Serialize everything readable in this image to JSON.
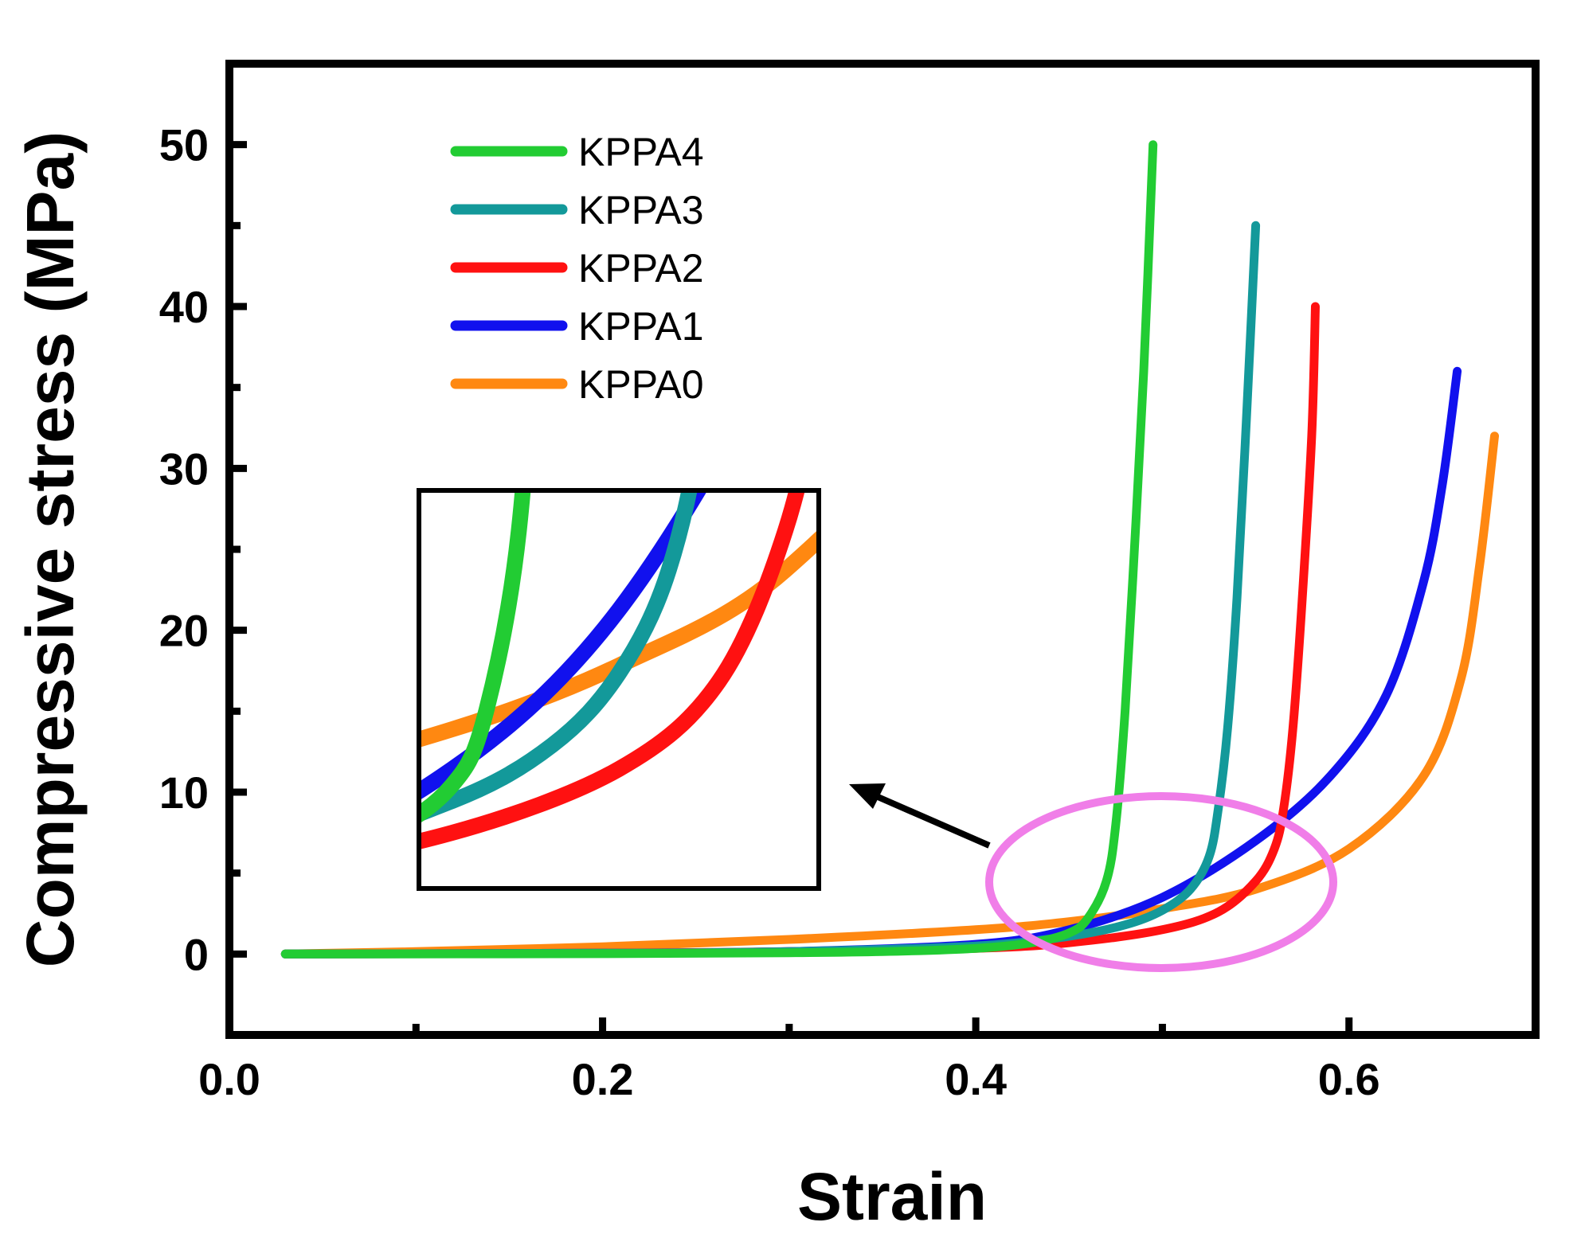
{
  "chart_data": {
    "type": "line",
    "title": "",
    "xlabel": "Strain",
    "ylabel": "Compressive stress (MPa)",
    "xlim": [
      0.0,
      0.7
    ],
    "ylim": [
      -5,
      55
    ],
    "x_ticks": [
      "0.0",
      "0.2",
      "0.4",
      "0.6"
    ],
    "y_ticks": [
      "0",
      "10",
      "20",
      "30",
      "40",
      "50"
    ],
    "legend_position": "top-left",
    "series": [
      {
        "name": "KPPA4",
        "color": "#22cc33",
        "points": [
          [
            0.03,
            0
          ],
          [
            0.2,
            0.02
          ],
          [
            0.3,
            0.08
          ],
          [
            0.35,
            0.15
          ],
          [
            0.4,
            0.35
          ],
          [
            0.43,
            0.7
          ],
          [
            0.45,
            1.3
          ],
          [
            0.46,
            2.2
          ],
          [
            0.47,
            4.5
          ],
          [
            0.475,
            8
          ],
          [
            0.48,
            15
          ],
          [
            0.485,
            25
          ],
          [
            0.49,
            36
          ],
          [
            0.495,
            50
          ]
        ]
      },
      {
        "name": "KPPA3",
        "color": "#13999a",
        "points": [
          [
            0.03,
            0
          ],
          [
            0.2,
            0.05
          ],
          [
            0.3,
            0.15
          ],
          [
            0.4,
            0.5
          ],
          [
            0.45,
            1.1
          ],
          [
            0.48,
            1.8
          ],
          [
            0.5,
            2.7
          ],
          [
            0.515,
            4
          ],
          [
            0.525,
            6
          ],
          [
            0.53,
            9
          ],
          [
            0.535,
            14
          ],
          [
            0.54,
            22
          ],
          [
            0.545,
            33
          ],
          [
            0.55,
            45
          ]
        ]
      },
      {
        "name": "KPPA2",
        "color": "#ff1111",
        "points": [
          [
            0.03,
            0
          ],
          [
            0.2,
            0.05
          ],
          [
            0.3,
            0.15
          ],
          [
            0.4,
            0.35
          ],
          [
            0.45,
            0.7
          ],
          [
            0.5,
            1.5
          ],
          [
            0.53,
            2.6
          ],
          [
            0.55,
            4.5
          ],
          [
            0.56,
            6.5
          ],
          [
            0.565,
            9
          ],
          [
            0.57,
            14
          ],
          [
            0.575,
            22
          ],
          [
            0.58,
            32
          ],
          [
            0.582,
            40
          ]
        ]
      },
      {
        "name": "KPPA1",
        "color": "#1111ee",
        "points": [
          [
            0.03,
            0
          ],
          [
            0.2,
            0.05
          ],
          [
            0.3,
            0.15
          ],
          [
            0.4,
            0.6
          ],
          [
            0.45,
            1.5
          ],
          [
            0.5,
            3.5
          ],
          [
            0.55,
            7
          ],
          [
            0.59,
            11
          ],
          [
            0.62,
            16
          ],
          [
            0.64,
            23
          ],
          [
            0.65,
            29
          ],
          [
            0.658,
            36
          ]
        ]
      },
      {
        "name": "KPPA0",
        "color": "#ff8811",
        "points": [
          [
            0.03,
            0
          ],
          [
            0.1,
            0.15
          ],
          [
            0.2,
            0.45
          ],
          [
            0.3,
            0.9
          ],
          [
            0.4,
            1.5
          ],
          [
            0.45,
            2
          ],
          [
            0.5,
            2.8
          ],
          [
            0.55,
            4
          ],
          [
            0.6,
            6.5
          ],
          [
            0.64,
            11
          ],
          [
            0.66,
            17
          ],
          [
            0.67,
            24
          ],
          [
            0.678,
            32
          ]
        ]
      }
    ],
    "inset": {
      "description": "zoomed view of the curves near the onset of densification",
      "xlim": [
        0.44,
        0.56
      ],
      "ylim": [
        0,
        5
      ]
    }
  }
}
